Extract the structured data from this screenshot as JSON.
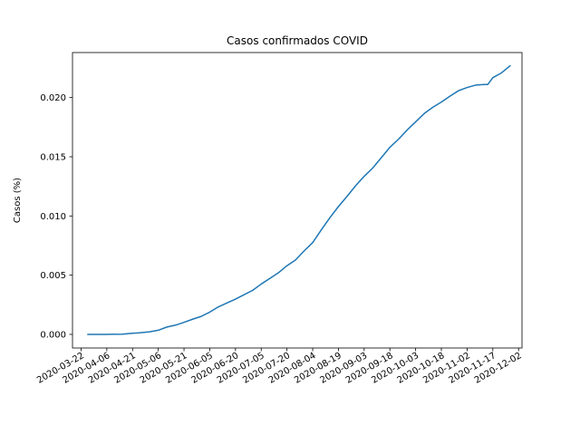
{
  "chart_data": {
    "type": "line",
    "title": "Casos confirmados COVID",
    "xlabel": "",
    "ylabel": "Casos (%)",
    "x_ticks": [
      "2020-03-22",
      "2020-04-06",
      "2020-04-21",
      "2020-05-06",
      "2020-05-21",
      "2020-06-05",
      "2020-06-20",
      "2020-07-05",
      "2020-07-20",
      "2020-08-04",
      "2020-08-19",
      "2020-09-03",
      "2020-09-18",
      "2020-10-03",
      "2020-10-18",
      "2020-11-02",
      "2020-11-17",
      "2020-12-02"
    ],
    "y_ticks": [
      "0.000",
      "0.005",
      "0.010",
      "0.015",
      "0.020"
    ],
    "xlim": [
      "2020-03-17",
      "2020-12-04"
    ],
    "ylim": [
      -0.00115,
      0.0238
    ],
    "grid": false,
    "color": "#1f77b4",
    "series": [
      {
        "x": [
          "2020-03-26",
          "2020-04-05",
          "2020-04-15",
          "2020-04-20",
          "2020-04-25",
          "2020-05-01",
          "2020-05-06",
          "2020-05-11",
          "2020-05-16",
          "2020-05-21",
          "2020-05-26",
          "2020-05-31",
          "2020-06-05",
          "2020-06-10",
          "2020-06-15",
          "2020-06-20",
          "2020-06-25",
          "2020-06-30",
          "2020-07-05",
          "2020-07-10",
          "2020-07-15",
          "2020-07-20",
          "2020-07-25",
          "2020-07-30",
          "2020-08-04",
          "2020-08-09",
          "2020-08-14",
          "2020-08-19",
          "2020-08-24",
          "2020-08-29",
          "2020-09-03",
          "2020-09-08",
          "2020-09-13",
          "2020-09-18",
          "2020-09-23",
          "2020-09-28",
          "2020-10-03",
          "2020-10-08",
          "2020-10-13",
          "2020-10-18",
          "2020-10-23",
          "2020-10-28",
          "2020-11-02",
          "2020-11-07",
          "2020-11-12",
          "2020-11-14",
          "2020-11-17",
          "2020-11-22",
          "2020-11-27"
        ],
        "values": [
          0.0,
          0.0,
          2e-05,
          8e-05,
          0.00013,
          0.00022,
          0.00035,
          0.00062,
          0.00078,
          0.00102,
          0.00128,
          0.00152,
          0.00188,
          0.00232,
          0.00265,
          0.00298,
          0.00335,
          0.00372,
          0.00425,
          0.00472,
          0.0052,
          0.0058,
          0.00628,
          0.00705,
          0.00775,
          0.00882,
          0.00985,
          0.0108,
          0.01165,
          0.01255,
          0.01335,
          0.01405,
          0.01492,
          0.0158,
          0.01648,
          0.01725,
          0.01795,
          0.01865,
          0.01918,
          0.01962,
          0.02012,
          0.02058,
          0.02085,
          0.02105,
          0.0211,
          0.0211,
          0.02168,
          0.02208,
          0.02268
        ]
      }
    ]
  }
}
